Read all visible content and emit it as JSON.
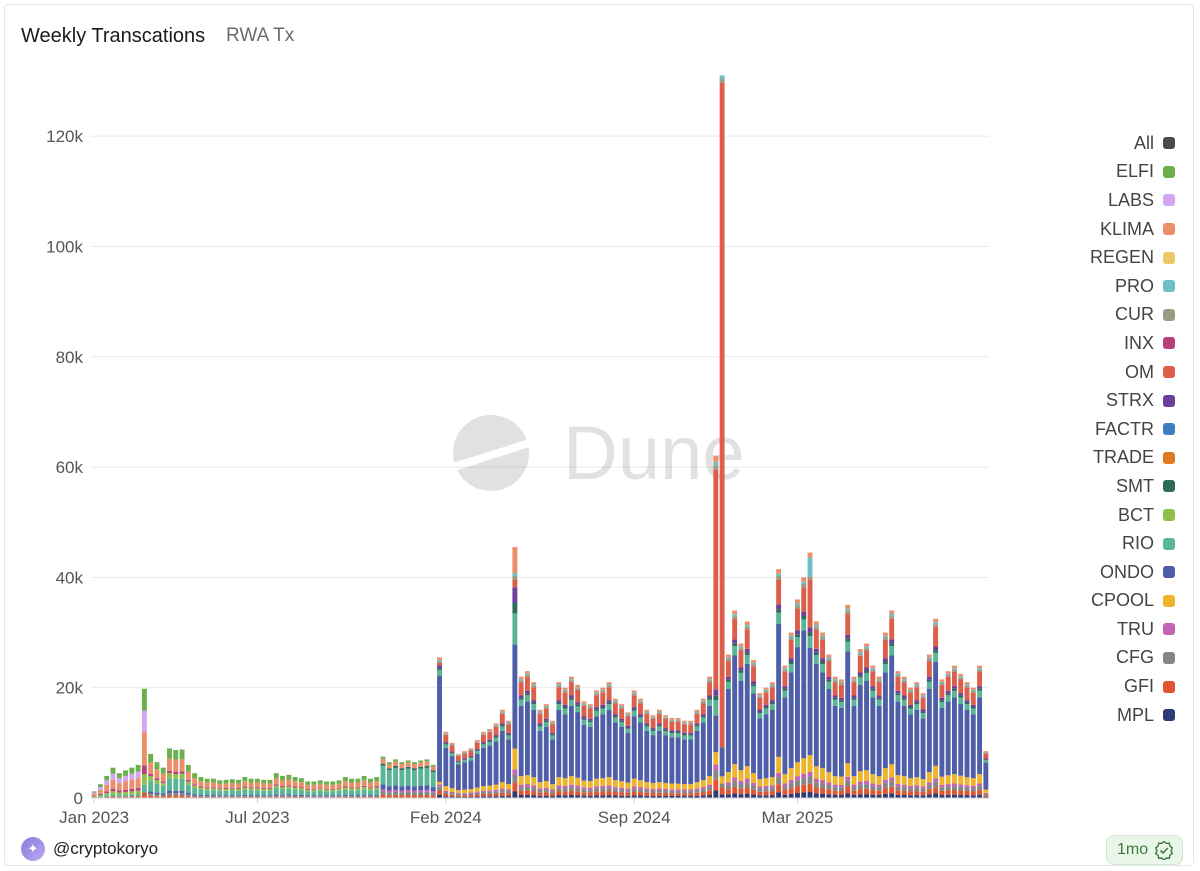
{
  "header": {
    "title": "Weekly Transcations",
    "subtitle": "RWA Tx"
  },
  "watermark": "Dune",
  "footer": {
    "user": "@cryptokoryo",
    "freshness": "1mo"
  },
  "legend": [
    {
      "name": "All",
      "color": "#4a4a4a"
    },
    {
      "name": "ELFI",
      "color": "#6ab04c"
    },
    {
      "name": "LABS",
      "color": "#d2a6f0"
    },
    {
      "name": "KLIMA",
      "color": "#ea8f6a"
    },
    {
      "name": "REGEN",
      "color": "#edc865"
    },
    {
      "name": "PRO",
      "color": "#6cbfc4"
    },
    {
      "name": "CUR",
      "color": "#9c9c86"
    },
    {
      "name": "INX",
      "color": "#b9417a"
    },
    {
      "name": "OM",
      "color": "#dd5e4a"
    },
    {
      "name": "STRX",
      "color": "#6b3f9a"
    },
    {
      "name": "FACTR",
      "color": "#3f7fc1"
    },
    {
      "name": "TRADE",
      "color": "#e07a22"
    },
    {
      "name": "SMT",
      "color": "#2f6b5a"
    },
    {
      "name": "BCT",
      "color": "#8fc04b"
    },
    {
      "name": "RIO",
      "color": "#59b596"
    },
    {
      "name": "ONDO",
      "color": "#4f5ea8"
    },
    {
      "name": "CPOOL",
      "color": "#eeb42b"
    },
    {
      "name": "TRU",
      "color": "#c462b4"
    },
    {
      "name": "CFG",
      "color": "#858585"
    },
    {
      "name": "GFI",
      "color": "#e0552f"
    },
    {
      "name": "MPL",
      "color": "#2f3a75"
    }
  ],
  "chart_data": {
    "type": "bar",
    "stacked": true,
    "x_tick_labels": [
      "Jan 2023",
      "Jul 2023",
      "Feb 2024",
      "Sep 2024",
      "Mar 2025"
    ],
    "y_tick_labels": [
      "0",
      "20k",
      "40k",
      "60k",
      "80k",
      "100k",
      "120k"
    ],
    "ylim": [
      0,
      130000
    ],
    "grid": true,
    "legend_position": "right",
    "series_names": [
      "MPL",
      "GFI",
      "CFG",
      "TRU",
      "CPOOL",
      "ONDO",
      "RIO",
      "BCT",
      "SMT",
      "TRADE",
      "FACTR",
      "STRX",
      "OM",
      "INX",
      "CUR",
      "PRO",
      "REGEN",
      "KLIMA",
      "LABS",
      "ELFI"
    ],
    "weekly_totals": [
      1200,
      2500,
      4000,
      5500,
      4500,
      5000,
      5500,
      6000,
      19800,
      8000,
      6500,
      5500,
      9000,
      8700,
      8800,
      6000,
      4500,
      3800,
      3500,
      3500,
      3200,
      3300,
      3400,
      3300,
      3800,
      3500,
      3500,
      3300,
      3300,
      4500,
      4000,
      4200,
      3800,
      3600,
      3000,
      3000,
      3200,
      3000,
      3000,
      3200,
      3800,
      3500,
      3500,
      4000,
      3500,
      3800,
      7500,
      6500,
      7000,
      6500,
      6800,
      6500,
      6800,
      7000,
      6000,
      25500,
      12000,
      10000,
      8000,
      8500,
      9000,
      10500,
      12000,
      12500,
      13500,
      16000,
      14000,
      45500,
      22000,
      23000,
      21000,
      16000,
      17000,
      14000,
      21000,
      20000,
      22000,
      20500,
      17500,
      17000,
      19500,
      20000,
      21000,
      18000,
      17000,
      15500,
      19500,
      18000,
      16000,
      15000,
      16000,
      15000,
      14500,
      14500,
      14000,
      14000,
      16000,
      18000,
      22000,
      62000,
      131000,
      26000,
      34000,
      28000,
      32000,
      25000,
      19000,
      20000,
      21000,
      41500,
      24000,
      30000,
      36000,
      40000,
      44500,
      32000,
      30000,
      26000,
      22000,
      21500,
      35000,
      22000,
      27000,
      28000,
      24000,
      22000,
      30000,
      34000,
      23000,
      22000,
      20000,
      21000,
      19000,
      26000,
      32500,
      21500,
      23000,
      24000,
      22500,
      21000,
      20000,
      24000,
      8500
    ]
  }
}
